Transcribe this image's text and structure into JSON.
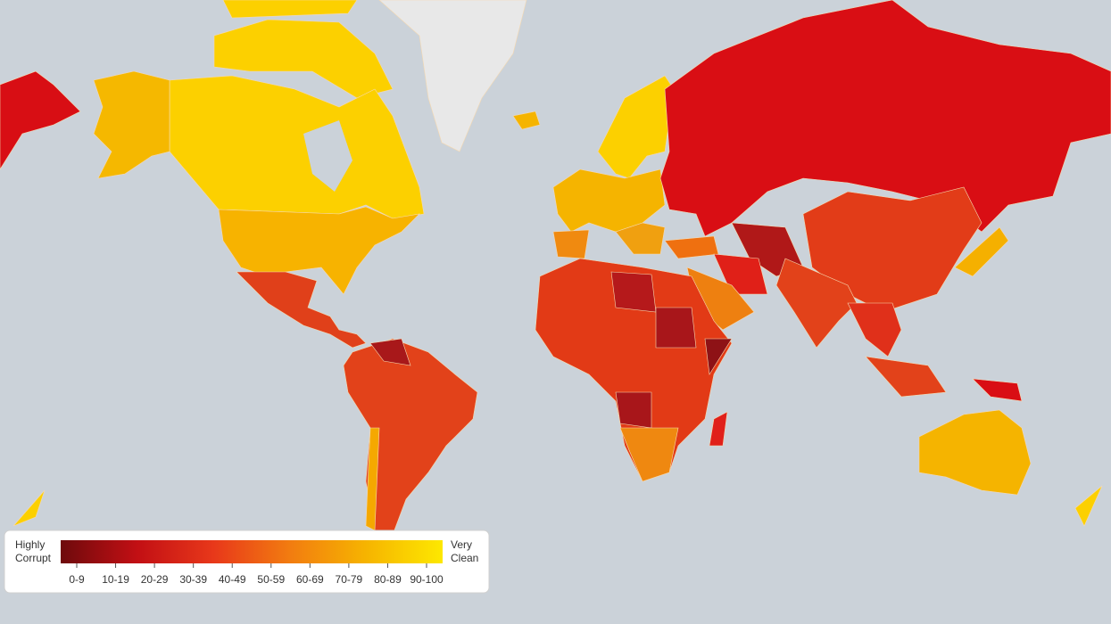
{
  "legend": {
    "low_label": [
      "Highly",
      "Corrupt"
    ],
    "high_label": [
      "Very",
      "Clean"
    ],
    "ranges": [
      "0-9",
      "10-19",
      "20-29",
      "30-39",
      "40-49",
      "50-59",
      "60-69",
      "70-79",
      "80-89",
      "90-100"
    ]
  }
}
